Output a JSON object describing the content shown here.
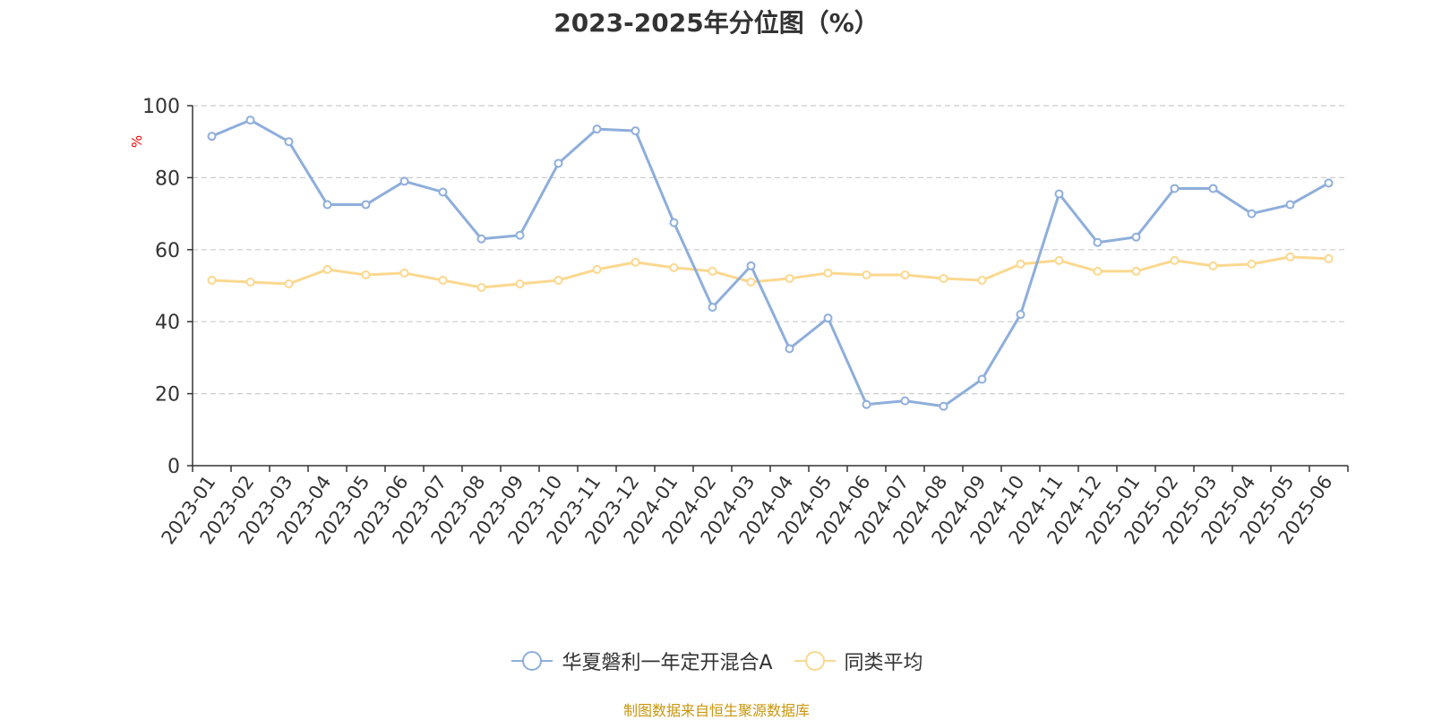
{
  "chart_data": {
    "type": "line",
    "title": "2023-2025年分位图（%）",
    "ylabel": "%",
    "xlabel": "",
    "ylim": [
      0,
      100
    ],
    "yticks": [
      0,
      20,
      40,
      60,
      80,
      100
    ],
    "grid": true,
    "legend_position": "bottom-center",
    "categories": [
      "2023-01",
      "2023-02",
      "2023-03",
      "2023-04",
      "2023-05",
      "2023-06",
      "2023-07",
      "2023-08",
      "2023-09",
      "2023-10",
      "2023-11",
      "2023-12",
      "2024-01",
      "2024-02",
      "2024-03",
      "2024-04",
      "2024-05",
      "2024-06",
      "2024-07",
      "2024-08",
      "2024-09",
      "2024-10",
      "2024-11",
      "2024-12",
      "2025-01",
      "2025-02",
      "2025-03",
      "2025-04",
      "2025-05",
      "2025-06"
    ],
    "series": [
      {
        "name": "华夏磐利一年定开混合A",
        "color": "#8eaedb",
        "values": [
          91.5,
          96,
          90,
          72.5,
          72.5,
          79,
          76,
          63,
          64,
          84,
          93.5,
          93,
          67.5,
          44,
          55.5,
          32.5,
          41,
          17,
          18,
          16.5,
          24,
          42,
          75.5,
          62,
          63.5,
          77,
          77,
          70,
          72.5,
          78.5
        ]
      },
      {
        "name": "同类平均",
        "color": "#fbd88f",
        "values": [
          51.5,
          51,
          50.5,
          54.5,
          53,
          53.5,
          51.5,
          49.5,
          50.5,
          51.5,
          54.5,
          56.5,
          55,
          54,
          51,
          52,
          53.5,
          53,
          53,
          52,
          51.5,
          56,
          57,
          54,
          54,
          57,
          55.5,
          56,
          58,
          57.5
        ]
      }
    ]
  },
  "source_text": "制图数据来自恒生聚源数据库",
  "colors": {
    "grid": "#cccccc",
    "axis": "#333333",
    "ylabel": "#ff0000",
    "source": "#c8960c"
  }
}
